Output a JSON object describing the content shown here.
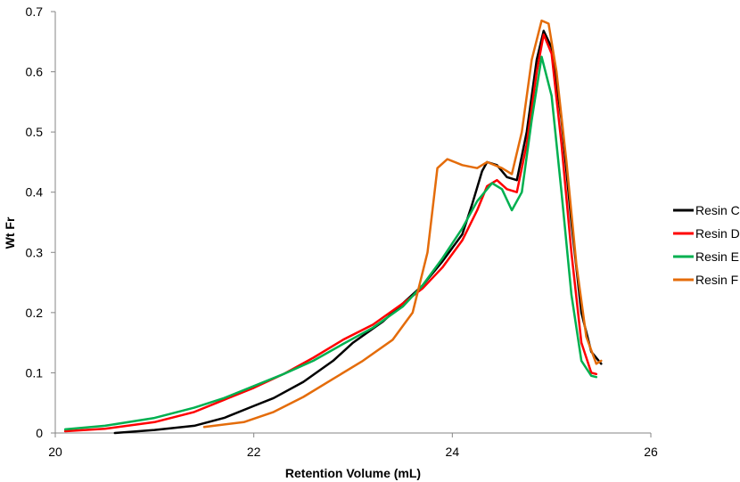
{
  "chart_data": {
    "type": "line",
    "title": "",
    "xlabel": "Retention Volume (mL)",
    "ylabel": "Wt Fr",
    "xlim": [
      20,
      26
    ],
    "ylim": [
      0,
      0.7
    ],
    "xticks": [
      20,
      22,
      24,
      26
    ],
    "yticks": [
      0,
      0.1,
      0.2,
      0.3,
      0.4,
      0.5,
      0.6,
      0.7
    ],
    "grid": false,
    "legend_position": "right",
    "series": [
      {
        "name": "Resin C",
        "color": "#000000",
        "points": [
          [
            20.6,
            0.0
          ],
          [
            21.0,
            0.005
          ],
          [
            21.4,
            0.012
          ],
          [
            21.7,
            0.025
          ],
          [
            22.0,
            0.045
          ],
          [
            22.2,
            0.058
          ],
          [
            22.5,
            0.085
          ],
          [
            22.8,
            0.12
          ],
          [
            23.0,
            0.15
          ],
          [
            23.3,
            0.185
          ],
          [
            23.5,
            0.215
          ],
          [
            23.7,
            0.245
          ],
          [
            23.9,
            0.285
          ],
          [
            24.1,
            0.33
          ],
          [
            24.2,
            0.38
          ],
          [
            24.3,
            0.435
          ],
          [
            24.35,
            0.45
          ],
          [
            24.45,
            0.445
          ],
          [
            24.55,
            0.425
          ],
          [
            24.65,
            0.42
          ],
          [
            24.75,
            0.5
          ],
          [
            24.85,
            0.62
          ],
          [
            24.92,
            0.668
          ],
          [
            25.0,
            0.64
          ],
          [
            25.1,
            0.52
          ],
          [
            25.2,
            0.35
          ],
          [
            25.3,
            0.2
          ],
          [
            25.4,
            0.135
          ],
          [
            25.5,
            0.115
          ]
        ]
      },
      {
        "name": "Resin D",
        "color": "#ff0000",
        "points": [
          [
            20.1,
            0.003
          ],
          [
            20.5,
            0.007
          ],
          [
            21.0,
            0.018
          ],
          [
            21.4,
            0.035
          ],
          [
            21.7,
            0.055
          ],
          [
            22.0,
            0.075
          ],
          [
            22.3,
            0.098
          ],
          [
            22.6,
            0.125
          ],
          [
            22.9,
            0.155
          ],
          [
            23.2,
            0.18
          ],
          [
            23.5,
            0.215
          ],
          [
            23.7,
            0.24
          ],
          [
            23.9,
            0.275
          ],
          [
            24.1,
            0.32
          ],
          [
            24.25,
            0.37
          ],
          [
            24.35,
            0.41
          ],
          [
            24.45,
            0.42
          ],
          [
            24.55,
            0.405
          ],
          [
            24.65,
            0.4
          ],
          [
            24.75,
            0.48
          ],
          [
            24.85,
            0.6
          ],
          [
            24.92,
            0.662
          ],
          [
            25.0,
            0.63
          ],
          [
            25.1,
            0.48
          ],
          [
            25.2,
            0.3
          ],
          [
            25.3,
            0.15
          ],
          [
            25.4,
            0.1
          ],
          [
            25.45,
            0.098
          ]
        ]
      },
      {
        "name": "Resin E",
        "color": "#00b050",
        "points": [
          [
            20.1,
            0.006
          ],
          [
            20.5,
            0.012
          ],
          [
            21.0,
            0.025
          ],
          [
            21.4,
            0.042
          ],
          [
            21.7,
            0.058
          ],
          [
            22.0,
            0.078
          ],
          [
            22.3,
            0.098
          ],
          [
            22.6,
            0.12
          ],
          [
            22.9,
            0.148
          ],
          [
            23.2,
            0.175
          ],
          [
            23.5,
            0.21
          ],
          [
            23.7,
            0.245
          ],
          [
            23.9,
            0.29
          ],
          [
            24.1,
            0.34
          ],
          [
            24.25,
            0.385
          ],
          [
            24.4,
            0.415
          ],
          [
            24.5,
            0.405
          ],
          [
            24.6,
            0.37
          ],
          [
            24.7,
            0.4
          ],
          [
            24.8,
            0.52
          ],
          [
            24.9,
            0.625
          ],
          [
            25.0,
            0.56
          ],
          [
            25.1,
            0.4
          ],
          [
            25.2,
            0.23
          ],
          [
            25.3,
            0.12
          ],
          [
            25.4,
            0.095
          ],
          [
            25.45,
            0.093
          ]
        ]
      },
      {
        "name": "Resin F",
        "color": "#e46c0a",
        "points": [
          [
            21.5,
            0.01
          ],
          [
            21.9,
            0.018
          ],
          [
            22.2,
            0.035
          ],
          [
            22.5,
            0.06
          ],
          [
            22.8,
            0.09
          ],
          [
            23.1,
            0.12
          ],
          [
            23.4,
            0.155
          ],
          [
            23.6,
            0.2
          ],
          [
            23.75,
            0.3
          ],
          [
            23.85,
            0.44
          ],
          [
            23.95,
            0.455
          ],
          [
            24.1,
            0.445
          ],
          [
            24.25,
            0.44
          ],
          [
            24.35,
            0.45
          ],
          [
            24.5,
            0.44
          ],
          [
            24.6,
            0.43
          ],
          [
            24.7,
            0.5
          ],
          [
            24.8,
            0.62
          ],
          [
            24.9,
            0.685
          ],
          [
            24.97,
            0.68
          ],
          [
            25.05,
            0.6
          ],
          [
            25.15,
            0.45
          ],
          [
            25.25,
            0.28
          ],
          [
            25.35,
            0.16
          ],
          [
            25.45,
            0.115
          ],
          [
            25.5,
            0.12
          ]
        ]
      }
    ]
  }
}
